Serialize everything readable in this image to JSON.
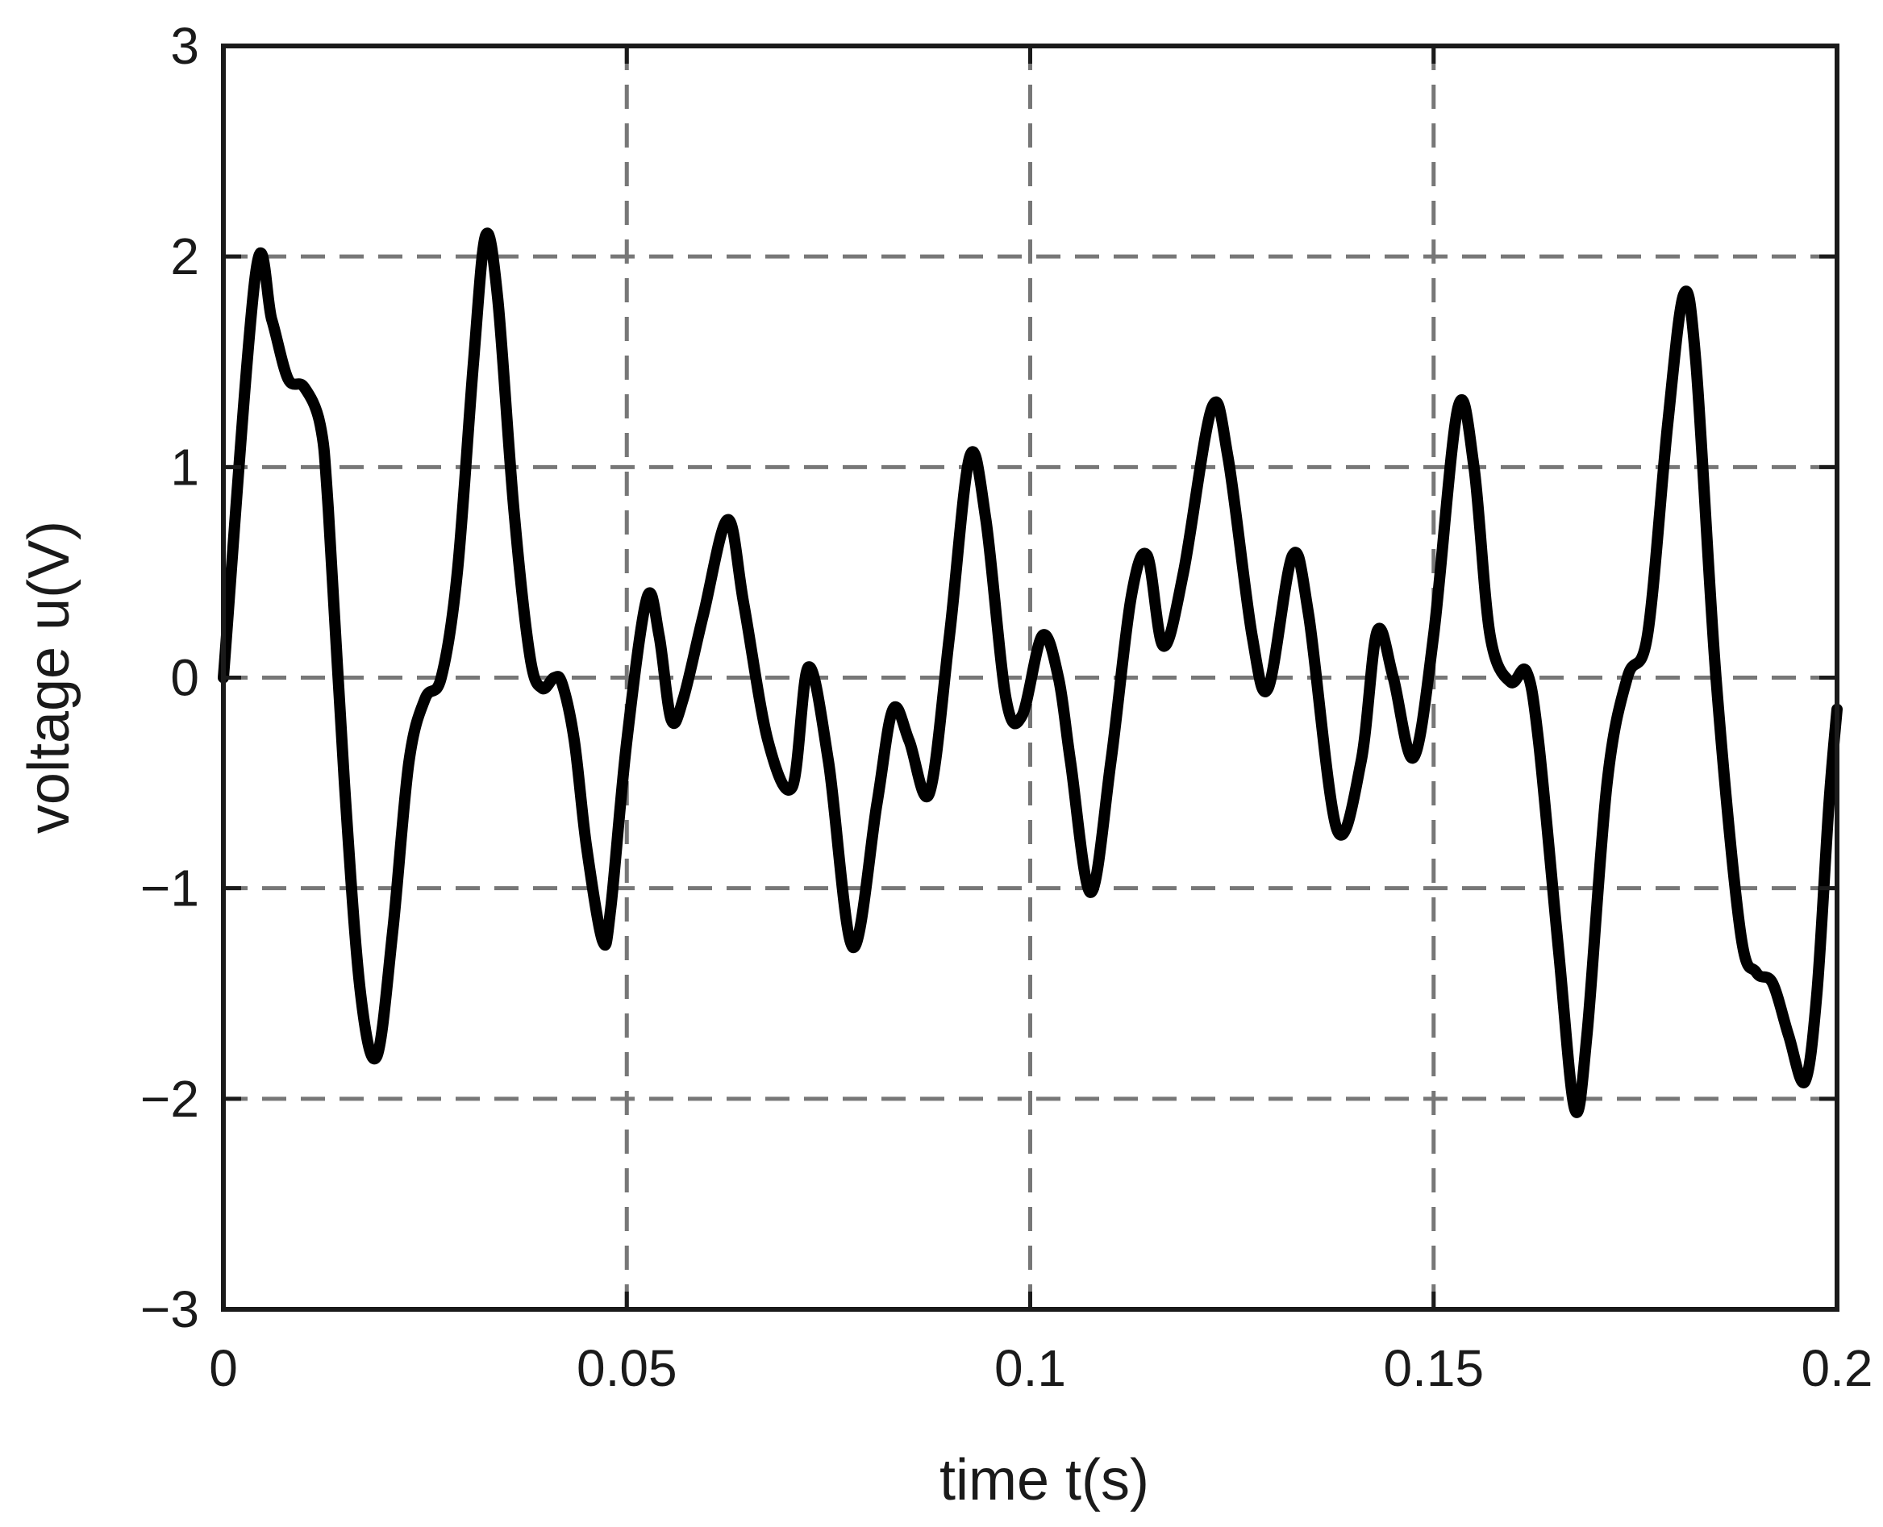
{
  "chart_data": {
    "type": "line",
    "title": "",
    "xlabel": "time t(s)",
    "ylabel": "voltage u(V)",
    "xlim": [
      0,
      0.2
    ],
    "ylim": [
      -3,
      3
    ],
    "xticks": [
      0,
      0.05,
      0.1,
      0.15,
      0.2
    ],
    "xtick_labels": [
      "0",
      "0.05",
      "0.1",
      "0.15",
      "0.2"
    ],
    "yticks": [
      -3,
      -2,
      -1,
      0,
      1,
      2,
      3
    ],
    "ytick_labels": [
      "−3",
      "−2",
      "−1",
      "0",
      "1",
      "2",
      "3"
    ],
    "grid": true,
    "legend": "none",
    "line_color": "#000000",
    "grid_color": "#777777",
    "series": [
      {
        "x": [
          0,
          0.004,
          0.006,
          0.008,
          0.01,
          0.012,
          0.013,
          0.015,
          0.017,
          0.019,
          0.021,
          0.023,
          0.025,
          0.027,
          0.029,
          0.031,
          0.0325,
          0.034,
          0.036,
          0.038,
          0.0395,
          0.041,
          0.042,
          0.0435,
          0.045,
          0.047,
          0.048,
          0.05,
          0.0525,
          0.054,
          0.0555,
          0.057,
          0.0595,
          0.0625,
          0.0645,
          0.0675,
          0.0705,
          0.0725,
          0.075,
          0.078,
          0.081,
          0.083,
          0.085,
          0.0875,
          0.09,
          0.0925,
          0.0945,
          0.097,
          0.099,
          0.1015,
          0.1035,
          0.105,
          0.1075,
          0.11,
          0.1125,
          0.1145,
          0.1165,
          0.119,
          0.1225,
          0.1245,
          0.1275,
          0.1295,
          0.1325,
          0.1345,
          0.138,
          0.141,
          0.143,
          0.145,
          0.1475,
          0.15,
          0.153,
          0.155,
          0.157,
          0.1595,
          0.1615,
          0.163,
          0.1655,
          0.1675,
          0.169,
          0.1715,
          0.174,
          0.1765,
          0.179,
          0.181,
          0.1825,
          0.185,
          0.188,
          0.19,
          0.192,
          0.194,
          0.196,
          0.1975,
          0.199,
          0.2
        ],
        "values": [
          0,
          1.92,
          1.7,
          1.42,
          1.38,
          1.2,
          0.8,
          -0.5,
          -1.5,
          -1.8,
          -1.2,
          -0.4,
          -0.1,
          0.0,
          0.5,
          1.5,
          2.1,
          1.8,
          0.8,
          0.1,
          -0.05,
          0.0,
          -0.03,
          -0.3,
          -0.8,
          -1.25,
          -1.1,
          -0.3,
          0.38,
          0.2,
          -0.2,
          -0.1,
          0.3,
          0.75,
          0.35,
          -0.3,
          -0.52,
          0.05,
          -0.4,
          -1.28,
          -0.6,
          -0.15,
          -0.3,
          -0.55,
          0.2,
          1.05,
          0.75,
          -0.1,
          -0.18,
          0.2,
          0.0,
          -0.4,
          -1.02,
          -0.4,
          0.38,
          0.58,
          0.15,
          0.5,
          1.28,
          1.05,
          0.2,
          -0.05,
          0.58,
          0.3,
          -0.72,
          -0.4,
          0.22,
          0.0,
          -0.38,
          0.2,
          1.28,
          1.0,
          0.2,
          -0.02,
          0.03,
          -0.3,
          -1.3,
          -2.05,
          -1.7,
          -0.5,
          0.0,
          0.2,
          1.2,
          1.82,
          1.5,
          0.0,
          -1.2,
          -1.4,
          -1.45,
          -1.7,
          -1.92,
          -1.5,
          -0.6,
          -0.15
        ]
      }
    ]
  }
}
